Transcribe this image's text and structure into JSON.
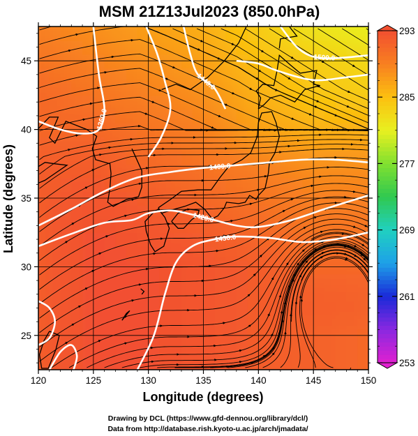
{
  "chart_data": {
    "type": "heatmap",
    "title": "MSM 21Z13Jul2023 (850.0hPa)",
    "xlabel": "Longitude (degrees)",
    "ylabel": "Latitude  (degrees)",
    "xlim": [
      120,
      150
    ],
    "ylim": [
      22.5,
      47.5
    ],
    "x_ticks": [
      120,
      125,
      130,
      135,
      140,
      145,
      150
    ],
    "y_ticks": [
      25,
      30,
      35,
      40,
      45
    ],
    "grid": true,
    "field": "temperature (K), colour shading",
    "colorbar": {
      "min": 253,
      "max": 293,
      "ticks": [
        253,
        261,
        269,
        277,
        285,
        293
      ],
      "colors": [
        "#e020d0",
        "#8a28e0",
        "#1a2ad8",
        "#1ea0e8",
        "#20d0c0",
        "#30c850",
        "#80e030",
        "#e8f020",
        "#fcc010",
        "#f88020",
        "#f25030"
      ],
      "placement": "right"
    },
    "temperature_samples": {
      "lon": [
        120,
        125,
        130,
        135,
        140,
        145,
        150
      ],
      "lat": [
        47.5,
        45,
        42.5,
        40,
        37.5,
        35,
        32.5,
        30,
        27.5,
        25,
        22.5
      ],
      "values": [
        [
          289,
          288,
          287,
          286,
          284,
          282,
          281
        ],
        [
          290,
          289,
          288,
          287,
          285,
          284,
          283
        ],
        [
          291,
          290,
          289,
          288,
          286,
          284.5,
          284
        ],
        [
          291,
          291,
          290,
          289,
          287,
          286,
          286
        ],
        [
          292,
          292,
          291,
          290,
          289,
          288,
          288
        ],
        [
          292,
          292.5,
          292,
          291,
          290,
          289,
          289
        ],
        [
          292,
          293,
          292.5,
          292,
          291,
          290,
          290
        ],
        [
          292,
          293,
          293,
          292.5,
          292,
          291,
          291
        ],
        [
          292,
          293,
          293,
          292.5,
          292,
          292,
          291.5
        ],
        [
          292,
          293,
          293,
          292.5,
          292,
          291.5,
          291
        ],
        [
          292,
          293,
          293,
          292.5,
          292,
          291.5,
          291
        ]
      ]
    },
    "contours": [
      {
        "label": "1360.0",
        "points": [
          [
            120,
            40.6
          ],
          [
            122,
            40.0
          ],
          [
            124,
            39.7
          ],
          [
            125.5,
            40.0
          ],
          [
            126,
            41.5
          ],
          [
            125.5,
            44.0
          ],
          [
            125,
            47.5
          ]
        ]
      },
      {
        "label": "1400.0",
        "points": [
          [
            120,
            33.0
          ],
          [
            123,
            34.2
          ],
          [
            126,
            35.5
          ],
          [
            129,
            36.5
          ],
          [
            132,
            36.9
          ],
          [
            135,
            37.2
          ],
          [
            138,
            37.4
          ],
          [
            141,
            37.6
          ],
          [
            144,
            37.8
          ],
          [
            147,
            37.8
          ],
          [
            150,
            37.6
          ]
        ]
      },
      {
        "label": "1420.0",
        "points": [
          [
            120,
            31.5
          ],
          [
            123,
            32.4
          ],
          [
            126,
            33.2
          ],
          [
            128.5,
            33.4
          ],
          [
            130,
            33.9
          ],
          [
            132,
            34.1
          ],
          [
            134,
            33.8
          ],
          [
            136,
            33.4
          ],
          [
            138,
            33.0
          ],
          [
            140,
            32.9
          ],
          [
            143,
            33.4
          ],
          [
            146,
            34.2
          ],
          [
            150,
            35.2
          ]
        ]
      },
      {
        "label": "1430.0",
        "points": [
          [
            129,
            22.5
          ],
          [
            130.5,
            25.0
          ],
          [
            131.5,
            28.0
          ],
          [
            132.5,
            30.3
          ],
          [
            134,
            31.5
          ],
          [
            136,
            32.0
          ],
          [
            138,
            32.2
          ],
          [
            141,
            32.1
          ],
          [
            144,
            31.8
          ],
          [
            147,
            32.0
          ],
          [
            150,
            32.5
          ]
        ]
      },
      {
        "label": "",
        "points": [
          [
            129.8,
            47.5
          ],
          [
            130.8,
            45.5
          ],
          [
            131.5,
            43.5
          ],
          [
            132,
            41.5
          ],
          [
            131.2,
            39.5
          ],
          [
            130,
            38.0
          ]
        ]
      },
      {
        "label": "1440.0",
        "points": [
          [
            133.2,
            47.5
          ],
          [
            133.8,
            45.5
          ],
          [
            134.5,
            44.0
          ],
          [
            136,
            43.0
          ],
          [
            137,
            41.5
          ]
        ]
      },
      {
        "label": "",
        "points": [
          [
            138,
            45.0
          ],
          [
            140,
            44.8
          ],
          [
            142,
            44.2
          ],
          [
            145,
            43.6
          ],
          [
            148,
            43.8
          ],
          [
            150,
            44.0
          ]
        ]
      },
      {
        "label": "1500.0",
        "points": [
          [
            142,
            47.5
          ],
          [
            143.5,
            46.0
          ],
          [
            145,
            45.3
          ],
          [
            147,
            45.2
          ],
          [
            150,
            45.4
          ]
        ]
      },
      {
        "label": "",
        "points": [
          [
            120,
            27.5
          ],
          [
            121,
            27.0
          ],
          [
            121.5,
            26.0
          ],
          [
            121,
            24.8
          ],
          [
            120,
            24.3
          ]
        ]
      },
      {
        "label": "",
        "points": [
          [
            121,
            22.5
          ],
          [
            122,
            23.8
          ],
          [
            123,
            24.3
          ],
          [
            123.5,
            23.5
          ],
          [
            123.2,
            22.5
          ]
        ]
      }
    ],
    "wind_field": {
      "style": "streamlines with arrowheads",
      "flow": "south-westerly over the East China Sea turning westerly over Japan; anticyclonic circulation centred near 147E, 29N; north-westerly over the Sea of Japan and Hokkaido"
    }
  },
  "credits": {
    "line1": "Drawing by DCL (https://www.gfd-dennou.org/library/dcl/)",
    "line2": "Data from http://database.rish.kyoto-u.ac.jp/arch/jmadata/"
  }
}
